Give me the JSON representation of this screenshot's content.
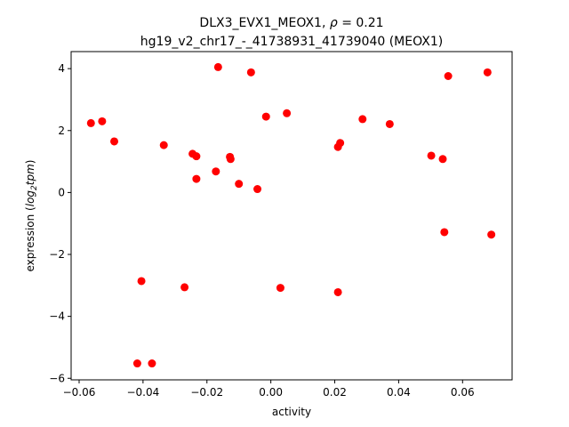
{
  "chart_data": {
    "type": "scatter",
    "title_line1_prefix": "DLX3_EVX1_MEOX1, ",
    "title_line1_rho_symbol": "ρ",
    "title_line1_rho_value": " = 0.21",
    "title_line2": "hg19_v2_chr17_-_41738931_41739040 (MEOX1)",
    "xlabel": "activity",
    "ylabel_prefix": "expression (",
    "ylabel_log": "log",
    "ylabel_sub": "2",
    "ylabel_tpm": "tpm",
    "ylabel_suffix": ")",
    "xlim": [
      -0.0625,
      0.0755
    ],
    "ylim": [
      -6.05,
      4.55
    ],
    "xticks": [
      -0.06,
      -0.04,
      -0.02,
      0.0,
      0.02,
      0.04,
      0.06
    ],
    "xtick_labels": [
      "−0.06",
      "−0.04",
      "−0.02",
      "0.00",
      "0.02",
      "0.04",
      "0.06"
    ],
    "yticks": [
      -6,
      -4,
      -2,
      0,
      2,
      4
    ],
    "ytick_labels": [
      "−6",
      "−4",
      "−2",
      "0",
      "2",
      "4"
    ],
    "marker_color": "#ff0000",
    "points": [
      {
        "x": -0.0563,
        "y": 2.24
      },
      {
        "x": -0.0528,
        "y": 2.3
      },
      {
        "x": -0.049,
        "y": 1.65
      },
      {
        "x": -0.0418,
        "y": -5.52
      },
      {
        "x": -0.0405,
        "y": -2.86
      },
      {
        "x": -0.0372,
        "y": -5.52
      },
      {
        "x": -0.0335,
        "y": 1.53
      },
      {
        "x": -0.027,
        "y": -3.06
      },
      {
        "x": -0.0245,
        "y": 1.25
      },
      {
        "x": -0.0233,
        "y": 1.17
      },
      {
        "x": -0.0233,
        "y": 0.44
      },
      {
        "x": -0.0172,
        "y": 0.68
      },
      {
        "x": -0.0165,
        "y": 4.05
      },
      {
        "x": -0.0128,
        "y": 1.15
      },
      {
        "x": -0.0126,
        "y": 1.08
      },
      {
        "x": -0.01,
        "y": 0.28
      },
      {
        "x": -0.0062,
        "y": 3.88
      },
      {
        "x": -0.0042,
        "y": 0.11
      },
      {
        "x": -0.0015,
        "y": 2.45
      },
      {
        "x": 0.003,
        "y": -3.08
      },
      {
        "x": 0.005,
        "y": 2.56
      },
      {
        "x": 0.021,
        "y": 1.47
      },
      {
        "x": 0.0217,
        "y": 1.6
      },
      {
        "x": 0.021,
        "y": -3.22
      },
      {
        "x": 0.0287,
        "y": 2.37
      },
      {
        "x": 0.0372,
        "y": 2.21
      },
      {
        "x": 0.0502,
        "y": 1.19
      },
      {
        "x": 0.0538,
        "y": 1.08
      },
      {
        "x": 0.0543,
        "y": -1.28
      },
      {
        "x": 0.0555,
        "y": 3.76
      },
      {
        "x": 0.0678,
        "y": 3.88
      },
      {
        "x": 0.069,
        "y": -1.36
      }
    ]
  }
}
